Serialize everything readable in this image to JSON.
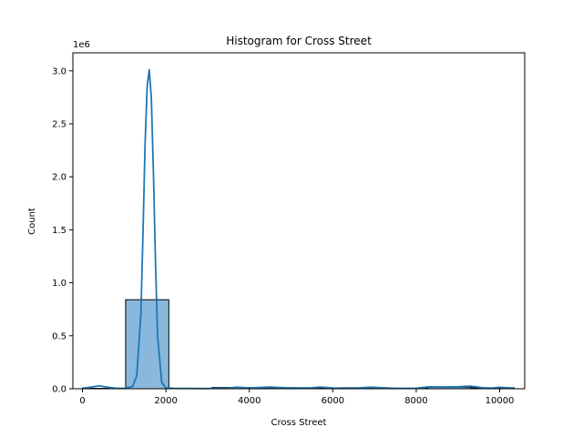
{
  "chart_data": {
    "type": "bar",
    "title": "Histogram for Cross Street",
    "xlabel": "Cross Street",
    "ylabel": "Count",
    "y_multiplier_label": "1e6",
    "xlim": [
      -230,
      10600
    ],
    "ylim": [
      0,
      3170000
    ],
    "x_ticks": [
      0,
      2000,
      4000,
      6000,
      8000,
      10000
    ],
    "x_tick_labels": [
      "0",
      "2000",
      "4000",
      "6000",
      "8000",
      "10000"
    ],
    "y_ticks": [
      0,
      500000,
      1000000,
      1500000,
      2000000,
      2500000,
      3000000
    ],
    "y_tick_labels": [
      "0.0",
      "0.5",
      "1.0",
      "1.5",
      "2.0",
      "2.5",
      "3.0"
    ],
    "bins": [
      {
        "x0": 0,
        "x1": 1035,
        "count": 4000
      },
      {
        "x0": 1035,
        "x1": 2070,
        "count": 840000
      },
      {
        "x0": 2070,
        "x1": 3105,
        "count": 3000
      },
      {
        "x0": 3105,
        "x1": 4140,
        "count": 12000
      },
      {
        "x0": 4140,
        "x1": 5175,
        "count": 10000
      },
      {
        "x0": 5175,
        "x1": 6210,
        "count": 8000
      },
      {
        "x0": 6210,
        "x1": 7245,
        "count": 10000
      },
      {
        "x0": 7245,
        "x1": 8280,
        "count": 4000
      },
      {
        "x0": 8280,
        "x1": 9315,
        "count": 15000
      },
      {
        "x0": 9315,
        "x1": 10350,
        "count": 9000
      }
    ],
    "kde": {
      "x": [
        0,
        200,
        400,
        600,
        800,
        1000,
        1200,
        1300,
        1400,
        1450,
        1500,
        1550,
        1600,
        1650,
        1700,
        1750,
        1800,
        1900,
        2000,
        2200,
        2500,
        3000,
        3500,
        3700,
        4000,
        4500,
        5000,
        5500,
        5700,
        6000,
        6500,
        6900,
        7200,
        7500,
        8000,
        8300,
        8600,
        9000,
        9300,
        9600,
        9800,
        10000,
        10350
      ],
      "y": [
        5000,
        15000,
        28000,
        15000,
        5000,
        4000,
        20000,
        120000,
        700000,
        1450000,
        2300000,
        2850000,
        3010000,
        2750000,
        2050000,
        1200000,
        500000,
        60000,
        8000,
        4000,
        3000,
        2000,
        6000,
        15000,
        8000,
        16000,
        7000,
        10000,
        16000,
        7000,
        4000,
        15000,
        9000,
        4000,
        5000,
        18000,
        17000,
        19000,
        25000,
        10000,
        6000,
        14000,
        6000
      ]
    },
    "bar_color": "#89b8dc",
    "bar_edge_color": "#000000",
    "kde_color": "#1f77b4",
    "grid": false,
    "legend": "none"
  }
}
